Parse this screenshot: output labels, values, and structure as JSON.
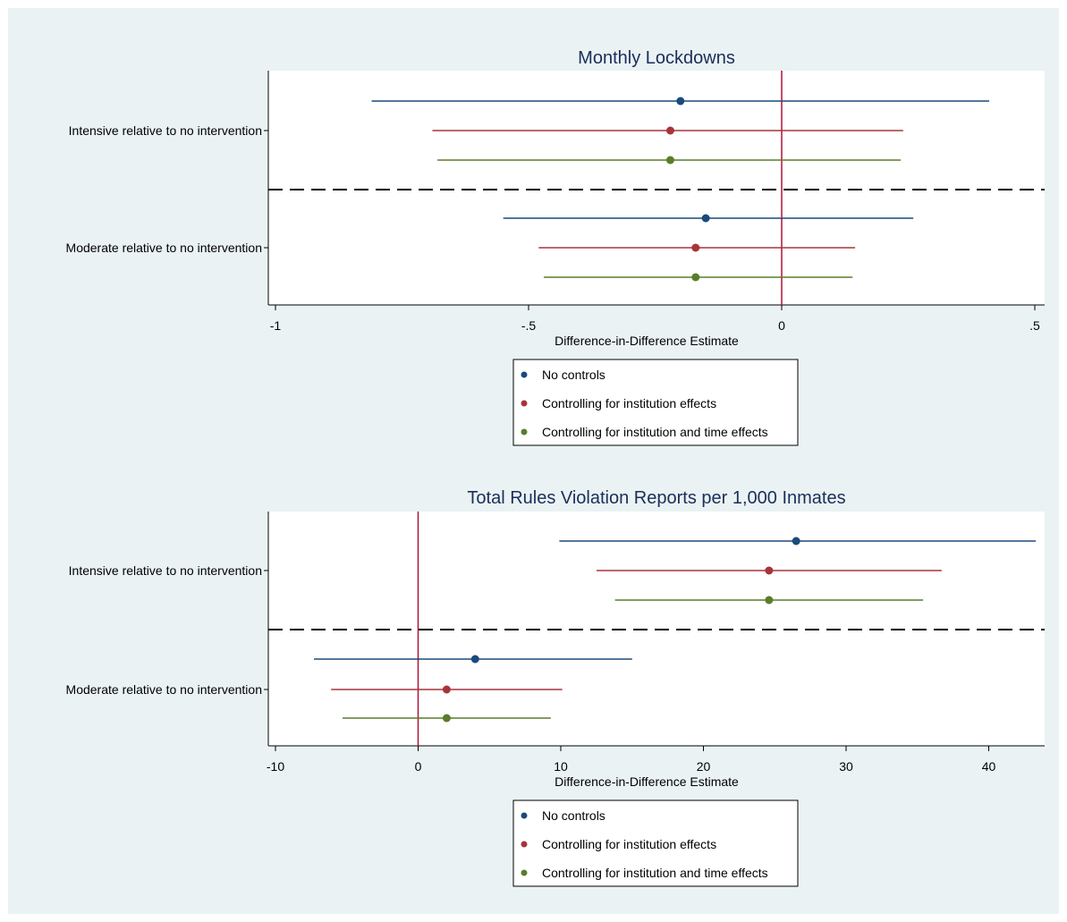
{
  "chart_data": [
    {
      "type": "scatter",
      "title": "Monthly Lockdowns",
      "xlabel": "Difference-in-Difference Estimate",
      "xlim": [
        -1,
        0.5
      ],
      "xticks": [
        -1,
        -0.5,
        0,
        0.5
      ],
      "xtick_labels": [
        "-1",
        "-.5",
        "0",
        ".5"
      ],
      "reference_line": 0,
      "categories": [
        "Intensive relative to no intervention",
        "Moderate relative to no intervention"
      ],
      "series": [
        {
          "name": "No controls",
          "color": "#1b4a7c",
          "estimates": [
            -0.2,
            -0.15
          ],
          "ci_low": [
            -0.81,
            -0.55
          ],
          "ci_high": [
            0.41,
            0.26
          ]
        },
        {
          "name": "Controlling for institution effects",
          "color": "#a8343b",
          "estimates": [
            -0.22,
            -0.17
          ],
          "ci_low": [
            -0.69,
            -0.48
          ],
          "ci_high": [
            0.24,
            0.145
          ]
        },
        {
          "name": "Controlling for institution and time effects",
          "color": "#5a7d2a",
          "estimates": [
            -0.22,
            -0.17
          ],
          "ci_low": [
            -0.68,
            -0.47
          ],
          "ci_high": [
            0.235,
            0.14
          ]
        }
      ],
      "legend": [
        {
          "label": "No controls",
          "color": "#1b4a7c"
        },
        {
          "label": "Controlling for institution effects",
          "color": "#a8343b"
        },
        {
          "label": "Controlling for institution and time effects",
          "color": "#5a7d2a"
        }
      ]
    },
    {
      "type": "scatter",
      "title": "Total Rules Violation Reports per 1,000 Inmates",
      "xlabel": "Difference-in-Difference Estimate",
      "xlim": [
        -10,
        43
      ],
      "xticks": [
        -10,
        0,
        10,
        20,
        30,
        40
      ],
      "xtick_labels": [
        "-10",
        "0",
        "10",
        "20",
        "30",
        "40"
      ],
      "reference_line": 0,
      "categories": [
        "Intensive relative to no intervention",
        "Moderate relative to no intervention"
      ],
      "series": [
        {
          "name": "No controls",
          "color": "#1b4a7c",
          "estimates": [
            26.5,
            4.0
          ],
          "ci_low": [
            9.9,
            -7.3
          ],
          "ci_high": [
            43.3,
            15.0
          ]
        },
        {
          "name": "Controlling for institution effects",
          "color": "#a8343b",
          "estimates": [
            24.6,
            2.0
          ],
          "ci_low": [
            12.5,
            -6.1
          ],
          "ci_high": [
            36.7,
            10.1
          ]
        },
        {
          "name": "Controlling for institution and time effects",
          "color": "#5a7d2a",
          "estimates": [
            24.6,
            2.0
          ],
          "ci_low": [
            13.8,
            -5.3
          ],
          "ci_high": [
            35.4,
            9.3
          ]
        }
      ],
      "legend": [
        {
          "label": "No controls",
          "color": "#1b4a7c"
        },
        {
          "label": "Controlling for institution effects",
          "color": "#a8343b"
        },
        {
          "label": "Controlling for institution and time effects",
          "color": "#5a7d2a"
        }
      ]
    }
  ],
  "colors": {
    "figure_background": "#eaf2f3",
    "plot_background": "#ffffff",
    "reference_line": "#b0103a",
    "panel_title": "#1a2e5a"
  }
}
